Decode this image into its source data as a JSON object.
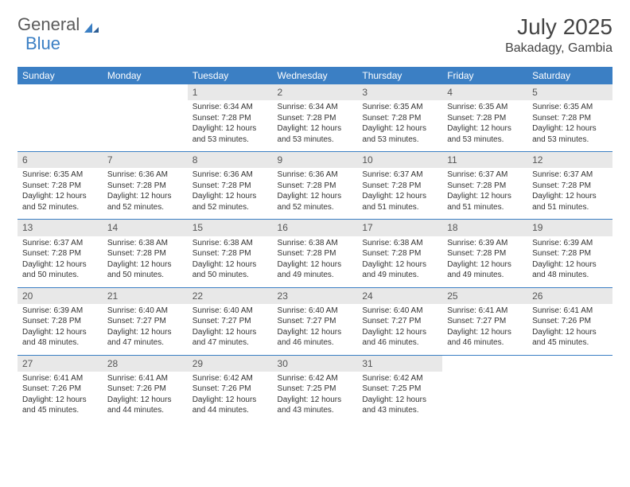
{
  "logo": {
    "text1": "General",
    "text2": "Blue"
  },
  "title": "July 2025",
  "location": "Bakadagy, Gambia",
  "colors": {
    "header_bg": "#3b7fc4",
    "header_text": "#ffffff",
    "daynum_bg": "#e8e8e8",
    "rule": "#3b7fc4",
    "text": "#333333",
    "logo_gray": "#5a5a5a"
  },
  "weekdays": [
    "Sunday",
    "Monday",
    "Tuesday",
    "Wednesday",
    "Thursday",
    "Friday",
    "Saturday"
  ],
  "weeks": [
    [
      {
        "n": "",
        "sr": "",
        "ss": "",
        "dl": ""
      },
      {
        "n": "",
        "sr": "",
        "ss": "",
        "dl": ""
      },
      {
        "n": "1",
        "sr": "6:34 AM",
        "ss": "7:28 PM",
        "dl": "12 hours and 53 minutes."
      },
      {
        "n": "2",
        "sr": "6:34 AM",
        "ss": "7:28 PM",
        "dl": "12 hours and 53 minutes."
      },
      {
        "n": "3",
        "sr": "6:35 AM",
        "ss": "7:28 PM",
        "dl": "12 hours and 53 minutes."
      },
      {
        "n": "4",
        "sr": "6:35 AM",
        "ss": "7:28 PM",
        "dl": "12 hours and 53 minutes."
      },
      {
        "n": "5",
        "sr": "6:35 AM",
        "ss": "7:28 PM",
        "dl": "12 hours and 53 minutes."
      }
    ],
    [
      {
        "n": "6",
        "sr": "6:35 AM",
        "ss": "7:28 PM",
        "dl": "12 hours and 52 minutes."
      },
      {
        "n": "7",
        "sr": "6:36 AM",
        "ss": "7:28 PM",
        "dl": "12 hours and 52 minutes."
      },
      {
        "n": "8",
        "sr": "6:36 AM",
        "ss": "7:28 PM",
        "dl": "12 hours and 52 minutes."
      },
      {
        "n": "9",
        "sr": "6:36 AM",
        "ss": "7:28 PM",
        "dl": "12 hours and 52 minutes."
      },
      {
        "n": "10",
        "sr": "6:37 AM",
        "ss": "7:28 PM",
        "dl": "12 hours and 51 minutes."
      },
      {
        "n": "11",
        "sr": "6:37 AM",
        "ss": "7:28 PM",
        "dl": "12 hours and 51 minutes."
      },
      {
        "n": "12",
        "sr": "6:37 AM",
        "ss": "7:28 PM",
        "dl": "12 hours and 51 minutes."
      }
    ],
    [
      {
        "n": "13",
        "sr": "6:37 AM",
        "ss": "7:28 PM",
        "dl": "12 hours and 50 minutes."
      },
      {
        "n": "14",
        "sr": "6:38 AM",
        "ss": "7:28 PM",
        "dl": "12 hours and 50 minutes."
      },
      {
        "n": "15",
        "sr": "6:38 AM",
        "ss": "7:28 PM",
        "dl": "12 hours and 50 minutes."
      },
      {
        "n": "16",
        "sr": "6:38 AM",
        "ss": "7:28 PM",
        "dl": "12 hours and 49 minutes."
      },
      {
        "n": "17",
        "sr": "6:38 AM",
        "ss": "7:28 PM",
        "dl": "12 hours and 49 minutes."
      },
      {
        "n": "18",
        "sr": "6:39 AM",
        "ss": "7:28 PM",
        "dl": "12 hours and 49 minutes."
      },
      {
        "n": "19",
        "sr": "6:39 AM",
        "ss": "7:28 PM",
        "dl": "12 hours and 48 minutes."
      }
    ],
    [
      {
        "n": "20",
        "sr": "6:39 AM",
        "ss": "7:28 PM",
        "dl": "12 hours and 48 minutes."
      },
      {
        "n": "21",
        "sr": "6:40 AM",
        "ss": "7:27 PM",
        "dl": "12 hours and 47 minutes."
      },
      {
        "n": "22",
        "sr": "6:40 AM",
        "ss": "7:27 PM",
        "dl": "12 hours and 47 minutes."
      },
      {
        "n": "23",
        "sr": "6:40 AM",
        "ss": "7:27 PM",
        "dl": "12 hours and 46 minutes."
      },
      {
        "n": "24",
        "sr": "6:40 AM",
        "ss": "7:27 PM",
        "dl": "12 hours and 46 minutes."
      },
      {
        "n": "25",
        "sr": "6:41 AM",
        "ss": "7:27 PM",
        "dl": "12 hours and 46 minutes."
      },
      {
        "n": "26",
        "sr": "6:41 AM",
        "ss": "7:26 PM",
        "dl": "12 hours and 45 minutes."
      }
    ],
    [
      {
        "n": "27",
        "sr": "6:41 AM",
        "ss": "7:26 PM",
        "dl": "12 hours and 45 minutes."
      },
      {
        "n": "28",
        "sr": "6:41 AM",
        "ss": "7:26 PM",
        "dl": "12 hours and 44 minutes."
      },
      {
        "n": "29",
        "sr": "6:42 AM",
        "ss": "7:26 PM",
        "dl": "12 hours and 44 minutes."
      },
      {
        "n": "30",
        "sr": "6:42 AM",
        "ss": "7:25 PM",
        "dl": "12 hours and 43 minutes."
      },
      {
        "n": "31",
        "sr": "6:42 AM",
        "ss": "7:25 PM",
        "dl": "12 hours and 43 minutes."
      },
      {
        "n": "",
        "sr": "",
        "ss": "",
        "dl": ""
      },
      {
        "n": "",
        "sr": "",
        "ss": "",
        "dl": ""
      }
    ]
  ],
  "labels": {
    "sunrise": "Sunrise:",
    "sunset": "Sunset:",
    "daylight": "Daylight:"
  }
}
